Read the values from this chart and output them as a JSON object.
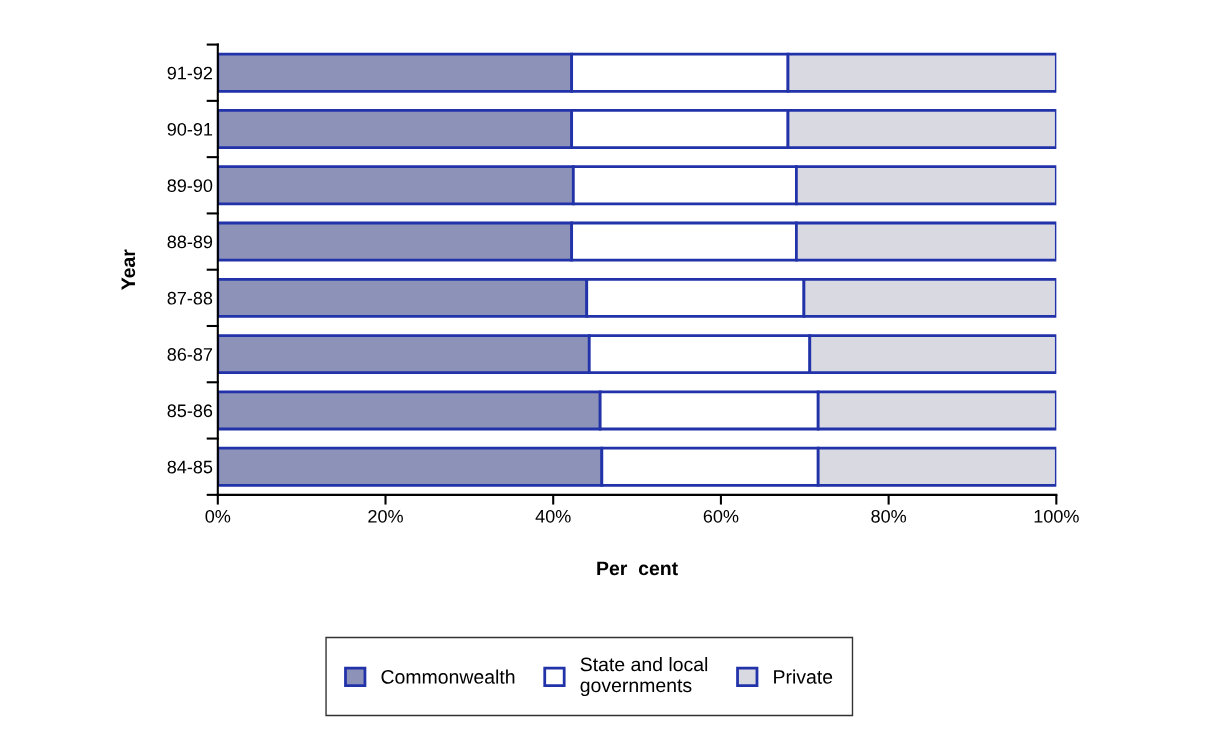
{
  "chart_data": {
    "type": "bar",
    "orientation": "horizontal",
    "stacked": true,
    "categories": [
      "91-92",
      "90-91",
      "89-90",
      "88-89",
      "87-88",
      "86-87",
      "85-86",
      "84-85"
    ],
    "series": [
      {
        "name": "Commonwealth",
        "color": "#8d92b8",
        "values": [
          42.2,
          42.2,
          42.4,
          42.2,
          44.0,
          44.3,
          45.6,
          45.8
        ]
      },
      {
        "name": "State and local\ngovernments",
        "color": "#ffffff",
        "values": [
          25.8,
          25.8,
          26.6,
          26.8,
          25.9,
          26.3,
          26.0,
          25.8
        ]
      },
      {
        "name": "Private",
        "color": "#d9d9e2",
        "values": [
          32.0,
          32.0,
          31.0,
          31.0,
          30.1,
          29.4,
          28.4,
          28.4
        ]
      }
    ],
    "xlabel": "Per  cent",
    "ylabel": "Year",
    "xlim": [
      0,
      100
    ],
    "xticks": [
      {
        "value": 0,
        "label": "0%"
      },
      {
        "value": 20,
        "label": "20%"
      },
      {
        "value": 40,
        "label": "40%"
      },
      {
        "value": 60,
        "label": "60%"
      },
      {
        "value": 80,
        "label": "80%"
      },
      {
        "value": 100,
        "label": "100%"
      }
    ],
    "grid": false,
    "legend": "bottom"
  }
}
